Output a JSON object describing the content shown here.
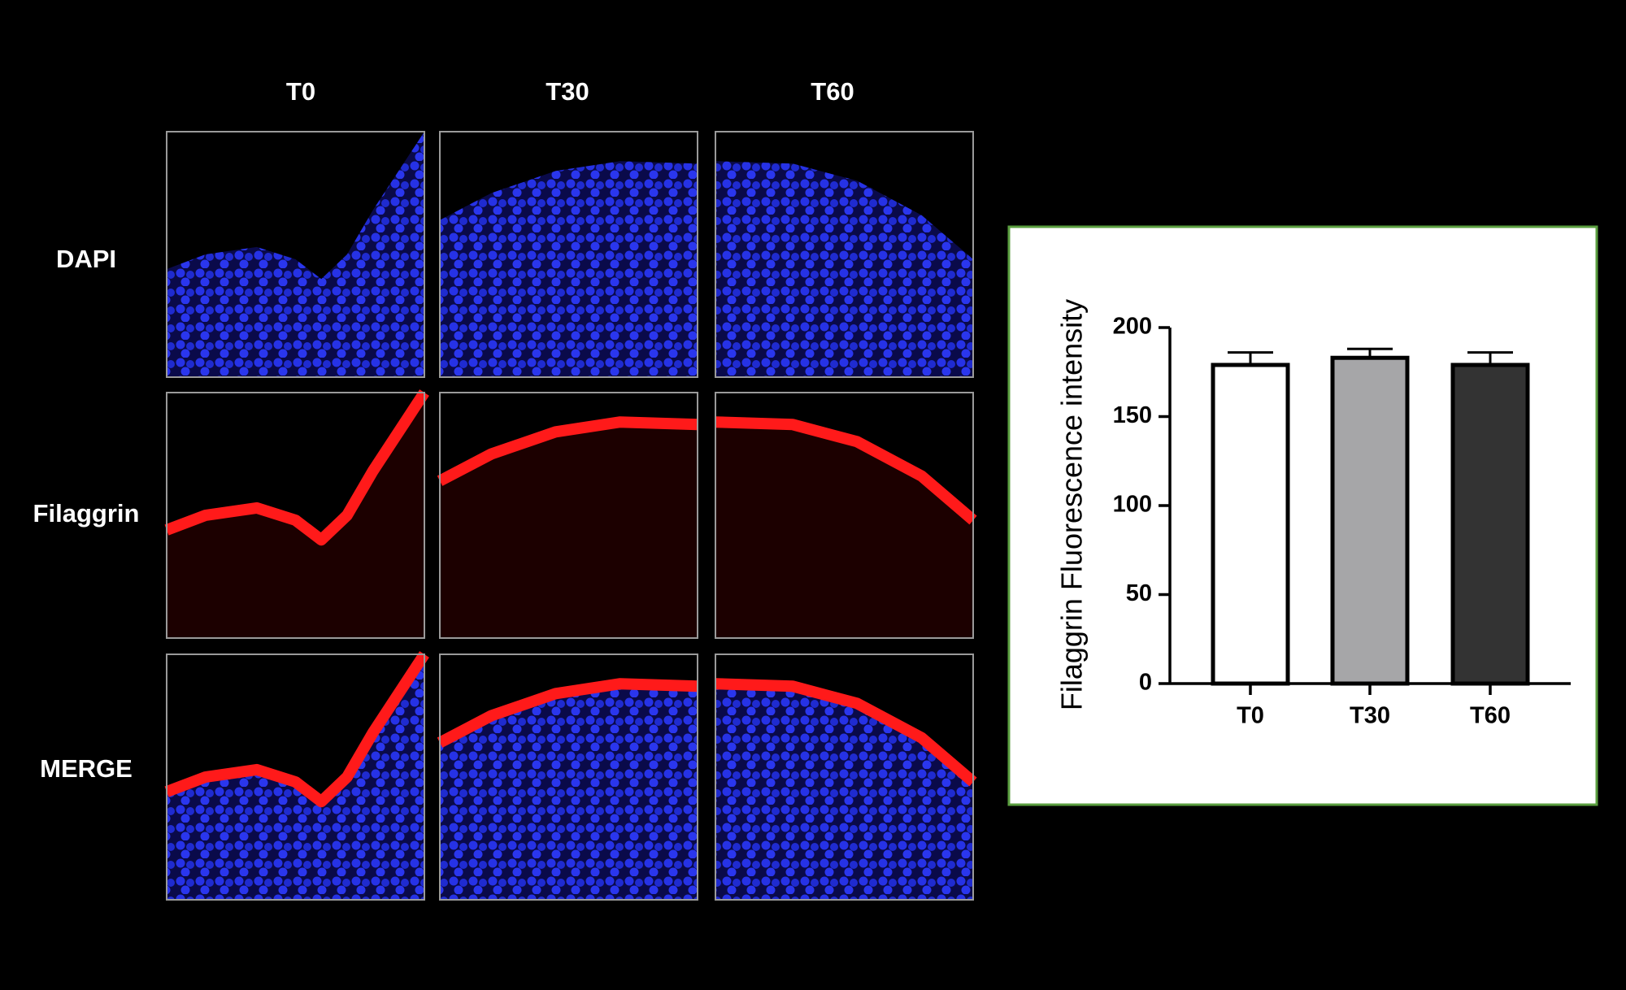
{
  "figure": {
    "columns": [
      "T0",
      "T30",
      "T60"
    ],
    "rows": [
      "DAPI",
      "Filaggrin",
      "MERGE"
    ]
  },
  "chart_data": {
    "type": "bar",
    "ylabel": "Filaggrin Fluorescence intensity",
    "categories": [
      "T0",
      "T30",
      "T60"
    ],
    "values": [
      179,
      183,
      179
    ],
    "errors": [
      7,
      5,
      7
    ],
    "colors": [
      "#ffffff",
      "#a6a6a8",
      "#333333"
    ],
    "ylim": [
      0,
      200
    ],
    "yticks": [
      0,
      50,
      100,
      150,
      200
    ],
    "grid": false
  }
}
